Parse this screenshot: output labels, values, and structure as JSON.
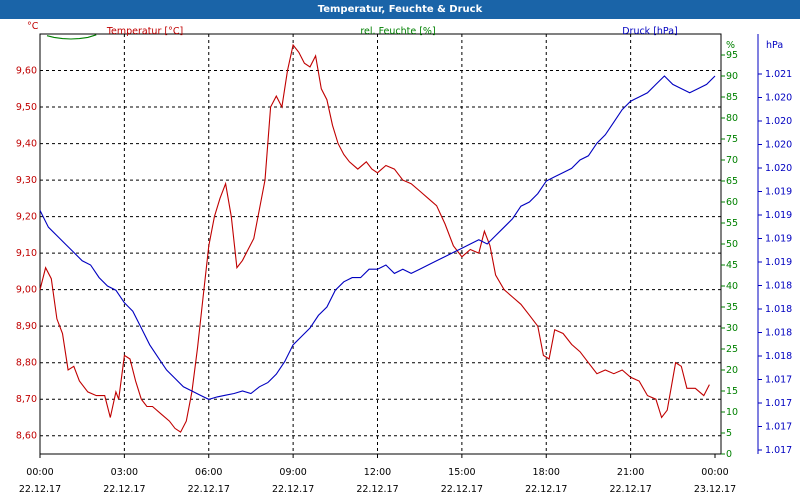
{
  "chart_data": {
    "type": "line",
    "title": "Temperatur, Feuchte & Druck",
    "legend": [
      {
        "label": "Temperatur [°C]",
        "color": "#c00000"
      },
      {
        "label": "rel. Feuchte [%]",
        "color": "#008000"
      },
      {
        "label": "Druck [hPa]",
        "color": "#0000c0"
      }
    ],
    "axes": {
      "left": {
        "unit": "°C",
        "color": "#c00000",
        "ylim": [
          8.55,
          9.7
        ],
        "ticks": [
          "9,60",
          "9,50",
          "9,40",
          "9,30",
          "9,20",
          "9,10",
          "9,00",
          "8,90",
          "8,80",
          "8,70",
          "8,60"
        ],
        "tick_values": [
          9.6,
          9.5,
          9.4,
          9.3,
          9.2,
          9.1,
          9.0,
          8.9,
          8.8,
          8.7,
          8.6
        ]
      },
      "mid": {
        "unit": "%",
        "color": "#008000",
        "ylim": [
          0,
          100
        ],
        "ticks": [
          "95",
          "90",
          "85",
          "80",
          "75",
          "70",
          "65",
          "60",
          "55",
          "50",
          "45",
          "40",
          "35",
          "30",
          "25",
          "20",
          "15",
          "10",
          "5",
          "0"
        ],
        "tick_values": [
          95,
          90,
          85,
          80,
          75,
          70,
          65,
          60,
          55,
          50,
          45,
          40,
          35,
          30,
          25,
          20,
          15,
          10,
          5,
          0
        ],
        "top_label": "%"
      },
      "right": {
        "unit": "hPa",
        "color": "#0000c0",
        "ylim": [
          1016.5,
          1021.5
        ],
        "ticks": [
          "1.021",
          "1.020",
          "1.020",
          "1.020",
          "1.020",
          "1.019",
          "1.019",
          "1.019",
          "1.019",
          "1.018",
          "1.018",
          "1.018",
          "1.018",
          "1.017",
          "1.017",
          "1.017",
          "1.017"
        ]
      }
    },
    "x": {
      "range_hours": [
        0,
        24
      ],
      "ticks": [
        {
          "time": "00:00",
          "date": "22.12.17"
        },
        {
          "time": "03:00",
          "date": "22.12.17"
        },
        {
          "time": "06:00",
          "date": "22.12.17"
        },
        {
          "time": "09:00",
          "date": "22.12.17"
        },
        {
          "time": "12:00",
          "date": "22.12.17"
        },
        {
          "time": "15:00",
          "date": "22.12.17"
        },
        {
          "time": "18:00",
          "date": "22.12.17"
        },
        {
          "time": "21:00",
          "date": "22.12.17"
        },
        {
          "time": "00:00",
          "date": "23.12.17"
        }
      ]
    },
    "series": [
      {
        "name": "Temperatur [°C]",
        "axis": "left",
        "color": "#c00000",
        "points": [
          [
            0,
            9.0
          ],
          [
            0.2,
            9.06
          ],
          [
            0.4,
            9.03
          ],
          [
            0.6,
            8.92
          ],
          [
            0.8,
            8.88
          ],
          [
            1.0,
            8.78
          ],
          [
            1.2,
            8.79
          ],
          [
            1.4,
            8.75
          ],
          [
            1.7,
            8.72
          ],
          [
            2.0,
            8.71
          ],
          [
            2.3,
            8.71
          ],
          [
            2.5,
            8.65
          ],
          [
            2.7,
            8.72
          ],
          [
            2.8,
            8.7
          ],
          [
            3.0,
            8.82
          ],
          [
            3.2,
            8.81
          ],
          [
            3.4,
            8.75
          ],
          [
            3.6,
            8.7
          ],
          [
            3.8,
            8.68
          ],
          [
            4.0,
            8.68
          ],
          [
            4.3,
            8.66
          ],
          [
            4.6,
            8.64
          ],
          [
            4.8,
            8.62
          ],
          [
            5.0,
            8.61
          ],
          [
            5.2,
            8.64
          ],
          [
            5.4,
            8.72
          ],
          [
            5.6,
            8.84
          ],
          [
            5.8,
            8.98
          ],
          [
            6.0,
            9.12
          ],
          [
            6.2,
            9.2
          ],
          [
            6.4,
            9.25
          ],
          [
            6.6,
            9.29
          ],
          [
            6.8,
            9.2
          ],
          [
            7.0,
            9.06
          ],
          [
            7.2,
            9.08
          ],
          [
            7.4,
            9.11
          ],
          [
            7.6,
            9.14
          ],
          [
            7.8,
            9.22
          ],
          [
            8.0,
            9.3
          ],
          [
            8.2,
            9.5
          ],
          [
            8.4,
            9.53
          ],
          [
            8.6,
            9.5
          ],
          [
            8.8,
            9.6
          ],
          [
            9.0,
            9.67
          ],
          [
            9.2,
            9.65
          ],
          [
            9.4,
            9.62
          ],
          [
            9.6,
            9.61
          ],
          [
            9.8,
            9.64
          ],
          [
            10.0,
            9.55
          ],
          [
            10.2,
            9.52
          ],
          [
            10.4,
            9.45
          ],
          [
            10.6,
            9.4
          ],
          [
            10.8,
            9.37
          ],
          [
            11.0,
            9.35
          ],
          [
            11.3,
            9.33
          ],
          [
            11.6,
            9.35
          ],
          [
            11.8,
            9.33
          ],
          [
            12.0,
            9.32
          ],
          [
            12.3,
            9.34
          ],
          [
            12.6,
            9.33
          ],
          [
            12.9,
            9.3
          ],
          [
            13.2,
            9.29
          ],
          [
            13.5,
            9.27
          ],
          [
            13.8,
            9.25
          ],
          [
            14.1,
            9.23
          ],
          [
            14.4,
            9.18
          ],
          [
            14.7,
            9.12
          ],
          [
            15.0,
            9.09
          ],
          [
            15.3,
            9.11
          ],
          [
            15.6,
            9.1
          ],
          [
            15.8,
            9.16
          ],
          [
            16.0,
            9.12
          ],
          [
            16.2,
            9.04
          ],
          [
            16.5,
            9.0
          ],
          [
            16.8,
            8.98
          ],
          [
            17.1,
            8.96
          ],
          [
            17.4,
            8.93
          ],
          [
            17.7,
            8.9
          ],
          [
            17.9,
            8.82
          ],
          [
            18.1,
            8.81
          ],
          [
            18.3,
            8.89
          ],
          [
            18.6,
            8.88
          ],
          [
            18.9,
            8.85
          ],
          [
            19.2,
            8.83
          ],
          [
            19.5,
            8.8
          ],
          [
            19.8,
            8.77
          ],
          [
            20.1,
            8.78
          ],
          [
            20.4,
            8.77
          ],
          [
            20.7,
            8.78
          ],
          [
            21.0,
            8.76
          ],
          [
            21.3,
            8.75
          ],
          [
            21.6,
            8.71
          ],
          [
            21.9,
            8.7
          ],
          [
            22.1,
            8.65
          ],
          [
            22.3,
            8.67
          ],
          [
            22.6,
            8.8
          ],
          [
            22.8,
            8.79
          ],
          [
            23.0,
            8.73
          ],
          [
            23.3,
            8.73
          ],
          [
            23.6,
            8.71
          ],
          [
            23.8,
            8.74
          ]
        ]
      },
      {
        "name": "rel. Feuchte [%]",
        "axis": "mid",
        "color": "#008000",
        "points": [
          [
            0.25,
            99.6
          ],
          [
            0.5,
            99.2
          ],
          [
            0.8,
            98.9
          ],
          [
            1.1,
            98.8
          ],
          [
            1.4,
            98.9
          ],
          [
            1.7,
            99.2
          ],
          [
            2.0,
            99.8
          ]
        ]
      },
      {
        "name": "Druck [hPa]",
        "axis": "right",
        "color": "#0000c0",
        "points": [
          [
            0,
            1019.4
          ],
          [
            0.3,
            1019.2
          ],
          [
            0.6,
            1019.1
          ],
          [
            0.9,
            1019.0
          ],
          [
            1.2,
            1018.9
          ],
          [
            1.5,
            1018.8
          ],
          [
            1.8,
            1018.75
          ],
          [
            2.1,
            1018.6
          ],
          [
            2.4,
            1018.5
          ],
          [
            2.7,
            1018.45
          ],
          [
            3.0,
            1018.3
          ],
          [
            3.3,
            1018.2
          ],
          [
            3.6,
            1018.0
          ],
          [
            3.9,
            1017.8
          ],
          [
            4.2,
            1017.65
          ],
          [
            4.5,
            1017.5
          ],
          [
            4.8,
            1017.4
          ],
          [
            5.1,
            1017.3
          ],
          [
            5.4,
            1017.25
          ],
          [
            5.7,
            1017.2
          ],
          [
            6.0,
            1017.15
          ],
          [
            6.3,
            1017.18
          ],
          [
            6.6,
            1017.2
          ],
          [
            6.9,
            1017.22
          ],
          [
            7.2,
            1017.25
          ],
          [
            7.5,
            1017.22
          ],
          [
            7.8,
            1017.3
          ],
          [
            8.1,
            1017.35
          ],
          [
            8.4,
            1017.45
          ],
          [
            8.7,
            1017.6
          ],
          [
            9.0,
            1017.8
          ],
          [
            9.3,
            1017.9
          ],
          [
            9.6,
            1018.0
          ],
          [
            9.9,
            1018.15
          ],
          [
            10.2,
            1018.25
          ],
          [
            10.5,
            1018.45
          ],
          [
            10.8,
            1018.55
          ],
          [
            11.1,
            1018.6
          ],
          [
            11.4,
            1018.6
          ],
          [
            11.7,
            1018.7
          ],
          [
            12.0,
            1018.7
          ],
          [
            12.3,
            1018.75
          ],
          [
            12.6,
            1018.65
          ],
          [
            12.9,
            1018.7
          ],
          [
            13.2,
            1018.65
          ],
          [
            13.5,
            1018.7
          ],
          [
            13.8,
            1018.75
          ],
          [
            14.1,
            1018.8
          ],
          [
            14.4,
            1018.85
          ],
          [
            14.7,
            1018.9
          ],
          [
            15.0,
            1018.95
          ],
          [
            15.3,
            1019.0
          ],
          [
            15.6,
            1019.05
          ],
          [
            15.9,
            1019.0
          ],
          [
            16.2,
            1019.1
          ],
          [
            16.5,
            1019.2
          ],
          [
            16.8,
            1019.3
          ],
          [
            17.1,
            1019.45
          ],
          [
            17.4,
            1019.5
          ],
          [
            17.7,
            1019.6
          ],
          [
            18.0,
            1019.75
          ],
          [
            18.3,
            1019.8
          ],
          [
            18.6,
            1019.85
          ],
          [
            18.9,
            1019.9
          ],
          [
            19.2,
            1020.0
          ],
          [
            19.5,
            1020.05
          ],
          [
            19.8,
            1020.2
          ],
          [
            20.1,
            1020.3
          ],
          [
            20.4,
            1020.45
          ],
          [
            20.7,
            1020.6
          ],
          [
            21.0,
            1020.7
          ],
          [
            21.3,
            1020.75
          ],
          [
            21.6,
            1020.8
          ],
          [
            21.9,
            1020.9
          ],
          [
            22.2,
            1021.0
          ],
          [
            22.5,
            1020.9
          ],
          [
            22.8,
            1020.85
          ],
          [
            23.1,
            1020.8
          ],
          [
            23.4,
            1020.85
          ],
          [
            23.7,
            1020.9
          ],
          [
            24.0,
            1021.0
          ]
        ]
      }
    ]
  }
}
